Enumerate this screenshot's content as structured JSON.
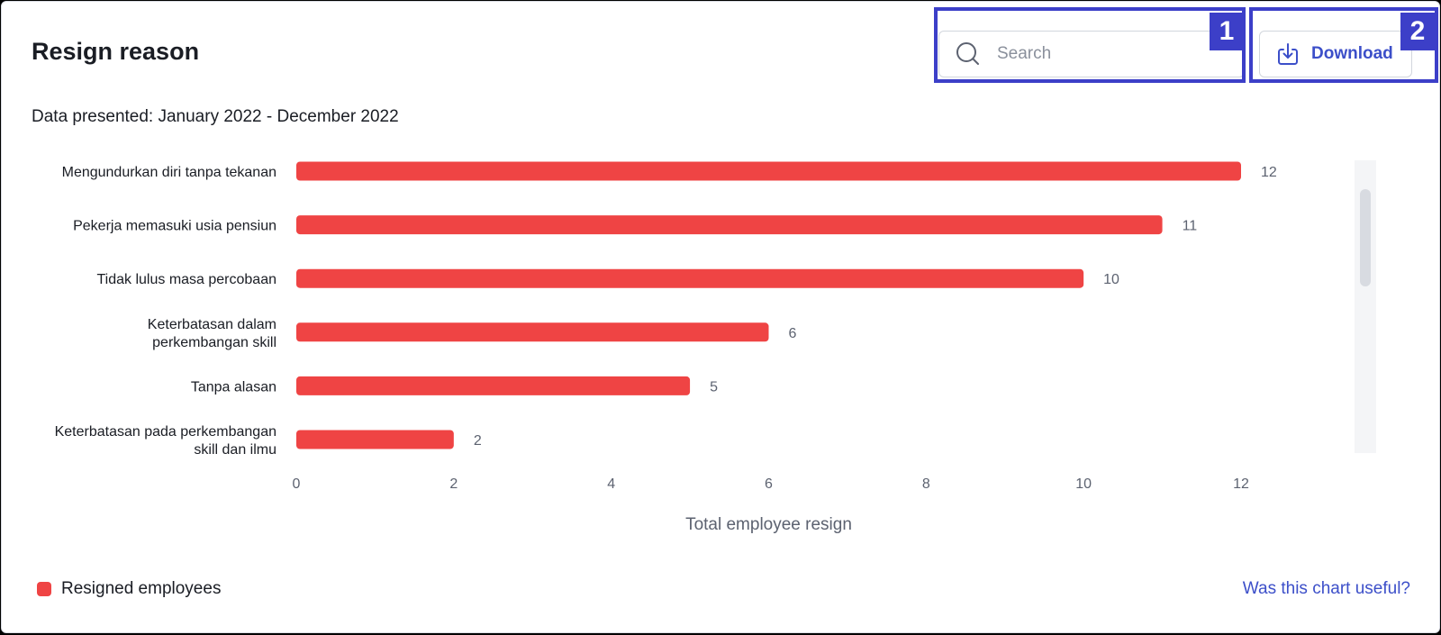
{
  "header": {
    "title": "Resign reason",
    "subtitle": "Data presented: January 2022 - December 2022"
  },
  "search": {
    "placeholder": "Search",
    "value": ""
  },
  "download": {
    "label": "Download"
  },
  "annotations": [
    {
      "number": "1",
      "target": "search-box"
    },
    {
      "number": "2",
      "target": "download-button"
    }
  ],
  "chart_data": {
    "type": "bar",
    "orientation": "horizontal",
    "categories": [
      "Mengundurkan diri tanpa tekanan",
      "Pekerja memasuki usia pensiun",
      "Tidak lulus masa percobaan",
      "Keterbatasan dalam perkembangan skill",
      "Tanpa alasan",
      "Keterbatasan pada perkembangan skill dan ilmu"
    ],
    "category_lines": [
      [
        "Mengundurkan diri tanpa tekanan"
      ],
      [
        "Pekerja memasuki usia pensiun"
      ],
      [
        "Tidak lulus masa percobaan"
      ],
      [
        "Keterbatasan dalam",
        "perkembangan skill"
      ],
      [
        "Tanpa alasan"
      ],
      [
        "Keterbatasan pada perkembangan",
        "skill dan ilmu"
      ]
    ],
    "series": [
      {
        "name": "Resigned employees",
        "values": [
          12,
          11,
          10,
          6,
          5,
          2
        ],
        "color": "#ef4444"
      }
    ],
    "xlabel": "Total employee resign",
    "ylabel": "",
    "xlim": [
      0,
      12
    ],
    "xticks": [
      0,
      2,
      4,
      6,
      8,
      10,
      12
    ],
    "grid": false,
    "legend": "bottom-left",
    "scrollable": true
  },
  "footer": {
    "feedback_link": "Was this chart useful?"
  },
  "colors": {
    "bar": "#ef4444",
    "accent": "#3c4fc9",
    "annotation": "#3c3fc8"
  }
}
